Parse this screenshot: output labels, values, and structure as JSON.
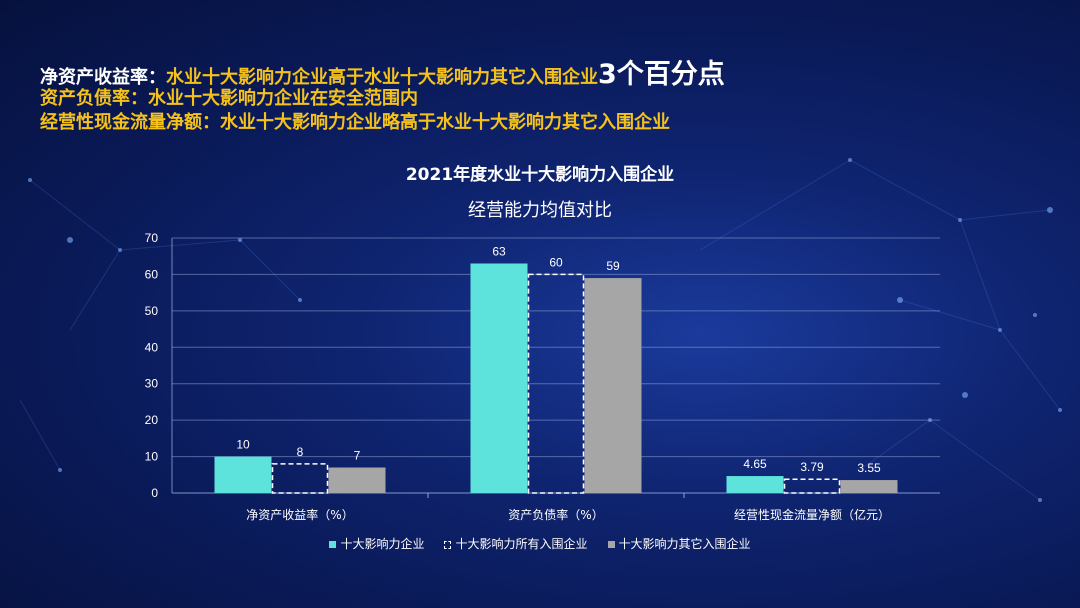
{
  "headlines": {
    "line1": {
      "key": "净资产收益率：",
      "value": "水业十大影响力企业高于水业十大影响力其它入围企业",
      "emphasis": "3个百分点"
    },
    "line2": {
      "key": "资产负债率：",
      "value": "水业十大影响力企业在安全范围内"
    },
    "line3": {
      "key": "经营性现金流量净额：",
      "value": "水业十大影响力企业略高于水业十大影响力其它入围企业"
    }
  },
  "chart_data": {
    "type": "bar",
    "title": "2021年度水业十大影响力入围企业",
    "subtitle": "经营能力均值对比",
    "categories": [
      "净资产收益率（%）",
      "资产负债率（%）",
      "经营性现金流量净额（亿元）"
    ],
    "series": [
      {
        "name": "十大影响力企业",
        "values": [
          10,
          63,
          4.65
        ],
        "labels": [
          "10",
          "63",
          "4.65"
        ],
        "color": "#5ee3dc",
        "style": "solid"
      },
      {
        "name": "十大影响力所有入围企业",
        "values": [
          8,
          60,
          3.79
        ],
        "labels": [
          "8",
          "60",
          "3.79"
        ],
        "color": "#ffffff",
        "style": "dashed"
      },
      {
        "name": "十大影响力其它入围企业",
        "values": [
          7,
          59,
          3.55
        ],
        "labels": [
          "7",
          "59",
          "3.55"
        ],
        "color": "#a6a6a6",
        "style": "solid"
      }
    ],
    "ylim": [
      0,
      70
    ],
    "yticks": [
      0,
      10,
      20,
      30,
      40,
      50,
      60,
      70
    ],
    "grid": true,
    "legend_position": "bottom"
  }
}
